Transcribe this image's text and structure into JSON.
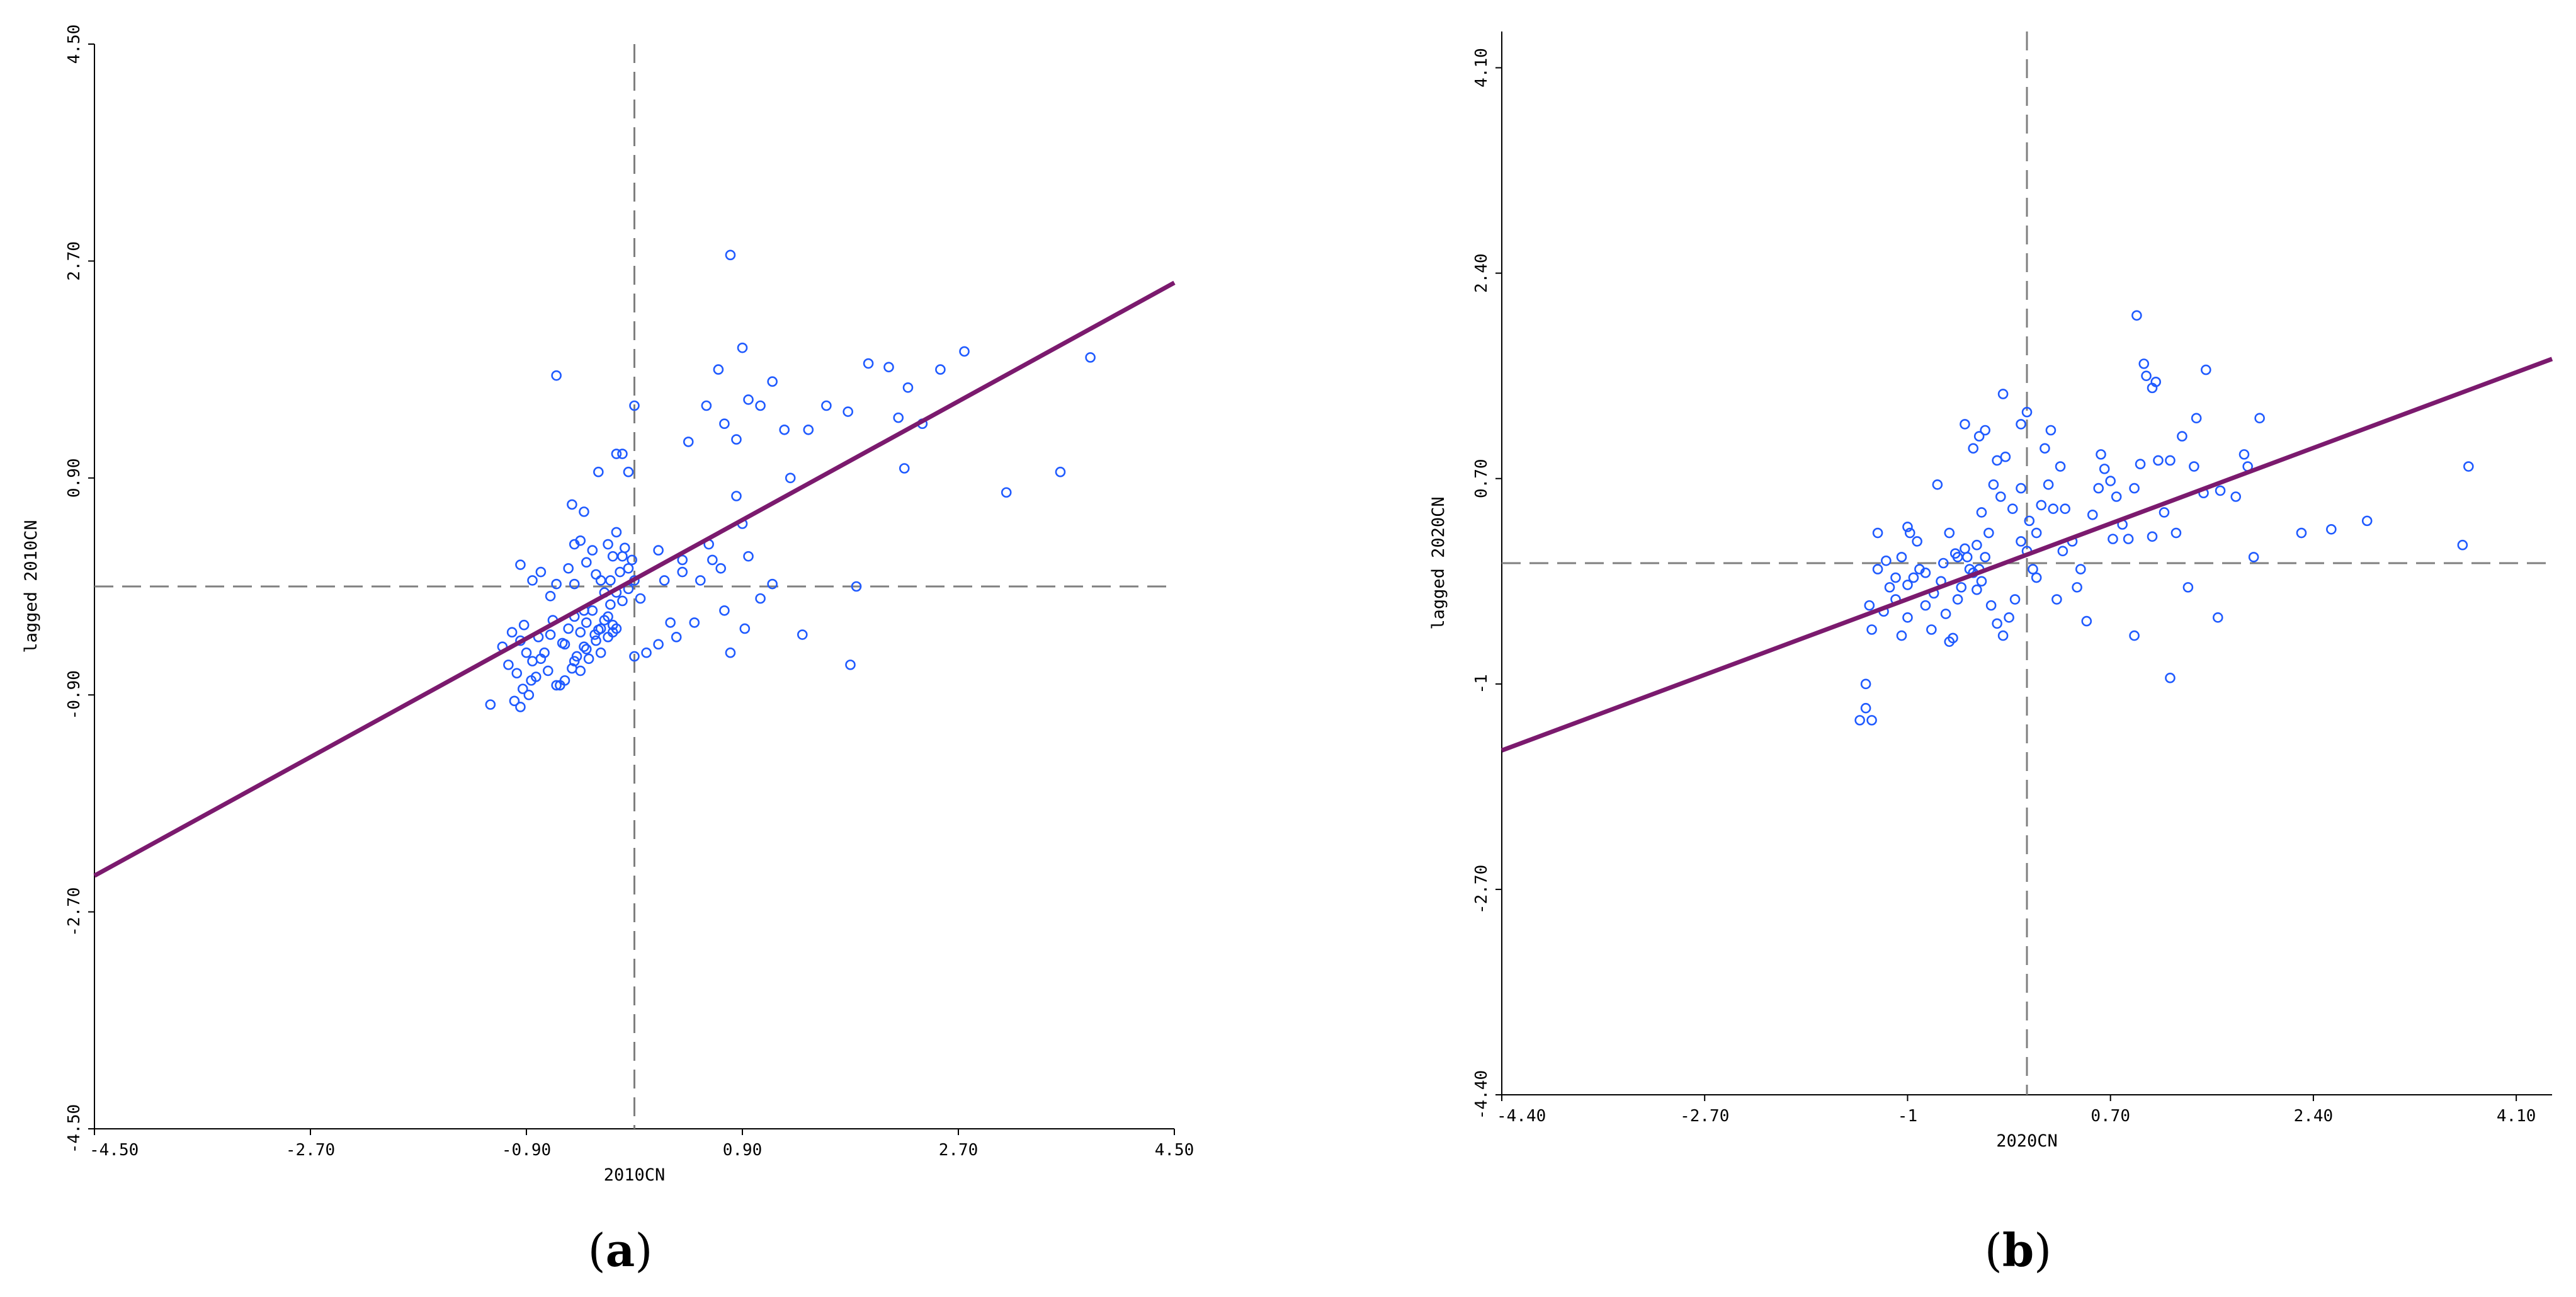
{
  "chart_data": [
    {
      "type": "scatter",
      "panel_caption": {
        "open": "(",
        "letter": "a",
        "close": ")"
      },
      "xlabel": "2010CN",
      "ylabel": "lagged 2010CN",
      "xlim": [
        -4.5,
        4.5
      ],
      "ylim": [
        -4.5,
        4.5
      ],
      "x_ticks": [
        "-4.50",
        "-2.70",
        "-0.90",
        "0.90",
        "2.70",
        "4.50"
      ],
      "x_tick_values": [
        -4.5,
        -2.7,
        -0.9,
        0.9,
        2.7,
        4.5
      ],
      "y_ticks": [
        "-4.50",
        "-2.70",
        "-0.90",
        "0.90",
        "2.70",
        "4.50"
      ],
      "y_tick_values": [
        -4.5,
        -2.7,
        -0.9,
        0.9,
        2.7,
        4.5
      ],
      "mean_lines": {
        "x": 0,
        "y": 0
      },
      "regression_line": {
        "x": [
          -4.5,
          4.5
        ],
        "y": [
          -2.4,
          2.52
        ]
      },
      "marker_color": "#1f5aff",
      "line_color": "#7b1a6e",
      "points": [
        [
          -1.2,
          -0.98
        ],
        [
          -1.05,
          -0.65
        ],
        [
          -1.1,
          -0.5
        ],
        [
          -1.02,
          -0.38
        ],
        [
          -0.92,
          -0.32
        ],
        [
          -0.95,
          -0.45
        ],
        [
          -0.9,
          -0.55
        ],
        [
          -0.85,
          -0.62
        ],
        [
          -0.8,
          -0.42
        ],
        [
          -0.75,
          -0.55
        ],
        [
          -0.7,
          -0.4
        ],
        [
          -0.68,
          -0.28
        ],
        [
          -0.6,
          -0.47
        ],
        [
          -0.55,
          -0.35
        ],
        [
          -0.5,
          -0.25
        ],
        [
          -0.45,
          -0.38
        ],
        [
          -0.4,
          -0.3
        ],
        [
          -0.35,
          -0.2
        ],
        [
          -0.3,
          -0.36
        ],
        [
          -0.25,
          -0.28
        ],
        [
          -0.2,
          -0.15
        ],
        [
          -0.15,
          -0.05
        ],
        [
          -0.1,
          -0.12
        ],
        [
          -0.05,
          -0.02
        ],
        [
          0.0,
          0.05
        ],
        [
          0.05,
          -0.1
        ],
        [
          -0.98,
          -0.72
        ],
        [
          -0.93,
          -0.85
        ],
        [
          -0.88,
          -0.9
        ],
        [
          -0.82,
          -0.75
        ],
        [
          -0.78,
          -0.6
        ],
        [
          -0.72,
          -0.7
        ],
        [
          -0.65,
          -0.82
        ],
        [
          -0.58,
          -0.78
        ],
        [
          -0.52,
          -0.68
        ],
        [
          -0.48,
          -0.58
        ],
        [
          -0.42,
          -0.5
        ],
        [
          -0.38,
          -0.6
        ],
        [
          -0.32,
          -0.45
        ],
        [
          -0.28,
          -0.55
        ],
        [
          -0.22,
          -0.42
        ],
        [
          -0.18,
          -0.32
        ],
        [
          -1.0,
          -0.95
        ],
        [
          -0.95,
          -1.0
        ],
        [
          -0.86,
          -0.78
        ],
        [
          -0.62,
          -0.82
        ],
        [
          -0.58,
          -0.48
        ],
        [
          -0.5,
          -0.62
        ],
        [
          -0.45,
          -0.7
        ],
        [
          -0.4,
          -0.52
        ],
        [
          -0.33,
          -0.4
        ],
        [
          -0.28,
          -0.35
        ],
        [
          -0.22,
          -0.25
        ],
        [
          -0.18,
          -0.38
        ],
        [
          -0.95,
          0.18
        ],
        [
          -0.85,
          0.05
        ],
        [
          -0.78,
          0.12
        ],
        [
          -0.7,
          -0.08
        ],
        [
          -0.65,
          0.02
        ],
        [
          -0.55,
          0.15
        ],
        [
          -0.5,
          0.02
        ],
        [
          -0.45,
          0.38
        ],
        [
          -0.42,
          0.62
        ],
        [
          -0.4,
          0.2
        ],
        [
          -0.35,
          0.3
        ],
        [
          -0.32,
          0.1
        ],
        [
          -0.28,
          0.05
        ],
        [
          -0.25,
          -0.05
        ],
        [
          -0.22,
          0.35
        ],
        [
          -0.2,
          0.05
        ],
        [
          -0.18,
          0.25
        ],
        [
          -0.15,
          0.45
        ],
        [
          -0.12,
          0.12
        ],
        [
          -0.1,
          0.25
        ],
        [
          -0.08,
          0.32
        ],
        [
          -0.05,
          0.15
        ],
        [
          -0.02,
          0.22
        ],
        [
          -0.3,
          0.95
        ],
        [
          -0.15,
          1.1
        ],
        [
          -0.1,
          1.1
        ],
        [
          -0.05,
          0.95
        ],
        [
          0.0,
          1.5
        ],
        [
          -0.65,
          1.75
        ],
        [
          0.2,
          0.3
        ],
        [
          0.25,
          0.05
        ],
        [
          0.4,
          0.22
        ],
        [
          0.4,
          0.12
        ],
        [
          0.3,
          -0.3
        ],
        [
          0.1,
          -0.55
        ],
        [
          0.0,
          -0.58
        ],
        [
          0.2,
          -0.48
        ],
        [
          0.35,
          -0.42
        ],
        [
          0.5,
          -0.3
        ],
        [
          0.55,
          0.05
        ],
        [
          0.62,
          0.35
        ],
        [
          0.65,
          0.22
        ],
        [
          0.72,
          0.15
        ],
        [
          0.75,
          -0.2
        ],
        [
          0.8,
          -0.55
        ],
        [
          0.85,
          0.75
        ],
        [
          0.9,
          0.52
        ],
        [
          0.92,
          -0.35
        ],
        [
          0.95,
          0.25
        ],
        [
          1.05,
          -0.1
        ],
        [
          1.15,
          0.02
        ],
        [
          1.4,
          -0.4
        ],
        [
          1.8,
          -0.65
        ],
        [
          1.85,
          0.0
        ],
        [
          0.45,
          1.2
        ],
        [
          0.6,
          1.5
        ],
        [
          0.7,
          1.8
        ],
        [
          0.75,
          1.35
        ],
        [
          0.85,
          1.22
        ],
        [
          0.9,
          1.98
        ],
        [
          0.95,
          1.55
        ],
        [
          1.05,
          1.5
        ],
        [
          1.15,
          1.7
        ],
        [
          1.25,
          1.3
        ],
        [
          1.3,
          0.9
        ],
        [
          1.45,
          1.3
        ],
        [
          1.6,
          1.5
        ],
        [
          1.78,
          1.45
        ],
        [
          1.95,
          1.85
        ],
        [
          2.12,
          1.82
        ],
        [
          2.2,
          1.4
        ],
        [
          2.28,
          1.65
        ],
        [
          2.4,
          1.35
        ],
        [
          2.25,
          0.98
        ],
        [
          2.55,
          1.8
        ],
        [
          2.75,
          1.95
        ],
        [
          3.1,
          0.78
        ],
        [
          3.55,
          0.95
        ],
        [
          3.8,
          1.9
        ],
        [
          0.8,
          2.75
        ],
        [
          -0.5,
          0.35
        ],
        [
          -0.52,
          0.68
        ],
        [
          -0.42,
          -0.2
        ],
        [
          -0.15,
          -0.35
        ]
      ]
    },
    {
      "type": "scatter",
      "panel_caption": {
        "open": "(",
        "letter": "b",
        "close": ")"
      },
      "xlabel": "2020CN",
      "ylabel": "lagged 2020CN",
      "xlim": [
        -4.4,
        4.4
      ],
      "ylim": [
        -4.4,
        4.4
      ],
      "x_ticks": [
        "-4.40",
        "-2.70",
        "-1",
        "0.70",
        "2.40",
        "4.10"
      ],
      "x_tick_values": [
        -4.4,
        -2.7,
        -1.0,
        0.7,
        2.4,
        4.1
      ],
      "y_ticks": [
        "-4.40",
        "-2.70",
        "-1",
        "0.70",
        "2.40",
        "4.10"
      ],
      "y_tick_values": [
        -4.4,
        -2.7,
        -1.0,
        0.7,
        2.4,
        4.1
      ],
      "mean_lines": {
        "x": 0,
        "y": 0
      },
      "regression_line": {
        "x": [
          -4.4,
          4.4
        ],
        "y": [
          -1.55,
          1.69
        ]
      },
      "marker_color": "#1f5aff",
      "line_color": "#7b1a6e",
      "points": [
        [
          -1.4,
          -1.3
        ],
        [
          -1.3,
          -1.3
        ],
        [
          -1.35,
          -1.0
        ],
        [
          -1.35,
          -1.2
        ],
        [
          -1.3,
          -0.55
        ],
        [
          -1.32,
          -0.35
        ],
        [
          -1.2,
          -0.4
        ],
        [
          -1.15,
          -0.2
        ],
        [
          -1.1,
          -0.3
        ],
        [
          -1.05,
          -0.6
        ],
        [
          -1.0,
          -0.45
        ],
        [
          -0.95,
          -0.12
        ],
        [
          -0.9,
          -0.05
        ],
        [
          -0.85,
          -0.35
        ],
        [
          -0.8,
          -0.55
        ],
        [
          -0.78,
          -0.25
        ],
        [
          -0.72,
          -0.15
        ],
        [
          -0.68,
          -0.42
        ],
        [
          -0.62,
          -0.62
        ],
        [
          -0.58,
          -0.3
        ],
        [
          -0.55,
          -0.2
        ],
        [
          -0.5,
          0.05
        ],
        [
          -0.45,
          -0.08
        ],
        [
          -0.42,
          -0.22
        ],
        [
          -0.38,
          -0.15
        ],
        [
          -0.35,
          0.05
        ],
        [
          -0.3,
          -0.35
        ],
        [
          -0.25,
          -0.5
        ],
        [
          -0.2,
          -0.6
        ],
        [
          -0.15,
          -0.45
        ],
        [
          -0.1,
          -0.3
        ],
        [
          -0.05,
          0.18
        ],
        [
          0.0,
          0.1
        ],
        [
          0.05,
          -0.05
        ],
        [
          -1.25,
          -0.05
        ],
        [
          -1.18,
          0.02
        ],
        [
          -1.1,
          -0.12
        ],
        [
          -1.05,
          0.05
        ],
        [
          -0.98,
          0.25
        ],
        [
          -0.92,
          0.18
        ],
        [
          -0.85,
          -0.08
        ],
        [
          -0.7,
          0.0
        ],
        [
          -0.65,
          0.25
        ],
        [
          -0.6,
          0.08
        ],
        [
          -0.52,
          0.12
        ],
        [
          -0.48,
          -0.05
        ],
        [
          -0.42,
          0.15
        ],
        [
          -0.38,
          0.42
        ],
        [
          -0.32,
          0.25
        ],
        [
          -0.28,
          0.65
        ],
        [
          -0.22,
          0.55
        ],
        [
          -0.18,
          0.88
        ],
        [
          -0.12,
          0.45
        ],
        [
          -0.05,
          0.62
        ],
        [
          0.02,
          0.35
        ],
        [
          0.08,
          0.25
        ],
        [
          0.12,
          0.48
        ],
        [
          0.18,
          0.65
        ],
        [
          0.22,
          0.45
        ],
        [
          0.3,
          0.1
        ],
        [
          -1.25,
          0.25
        ],
        [
          -1.0,
          0.3
        ],
        [
          -0.75,
          0.65
        ],
        [
          -0.52,
          1.15
        ],
        [
          -0.45,
          0.95
        ],
        [
          -0.4,
          1.05
        ],
        [
          -0.35,
          1.1
        ],
        [
          -0.2,
          1.4
        ],
        [
          -0.05,
          1.15
        ],
        [
          0.0,
          1.25
        ],
        [
          0.2,
          1.1
        ],
        [
          0.28,
          0.8
        ],
        [
          0.32,
          0.45
        ],
        [
          0.38,
          0.18
        ],
        [
          0.42,
          -0.2
        ],
        [
          0.45,
          -0.05
        ],
        [
          0.55,
          0.4
        ],
        [
          0.6,
          0.62
        ],
        [
          0.65,
          0.78
        ],
        [
          0.7,
          0.68
        ],
        [
          0.75,
          0.55
        ],
        [
          0.8,
          0.32
        ],
        [
          0.85,
          0.2
        ],
        [
          0.9,
          0.62
        ],
        [
          0.95,
          0.82
        ],
        [
          0.98,
          1.65
        ],
        [
          1.0,
          1.55
        ],
        [
          1.05,
          0.22
        ],
        [
          1.1,
          0.85
        ],
        [
          1.15,
          0.42
        ],
        [
          1.2,
          0.85
        ],
        [
          1.3,
          1.05
        ],
        [
          1.4,
          0.8
        ],
        [
          1.48,
          0.58
        ],
        [
          1.62,
          0.6
        ],
        [
          1.75,
          0.55
        ],
        [
          1.85,
          0.8
        ],
        [
          1.9,
          0.05
        ],
        [
          1.95,
          1.2
        ],
        [
          2.3,
          0.25
        ],
        [
          2.55,
          0.28
        ],
        [
          2.85,
          0.35
        ],
        [
          3.65,
          0.15
        ],
        [
          3.7,
          0.8
        ],
        [
          0.92,
          2.05
        ],
        [
          1.05,
          1.45
        ],
        [
          1.08,
          1.5
        ],
        [
          1.42,
          1.2
        ],
        [
          1.5,
          1.6
        ],
        [
          1.82,
          0.9
        ],
        [
          -0.65,
          -0.65
        ],
        [
          -0.4,
          -0.05
        ],
        [
          0.25,
          -0.3
        ],
        [
          0.5,
          -0.48
        ],
        [
          0.62,
          0.9
        ],
        [
          0.9,
          -0.6
        ],
        [
          1.2,
          -0.95
        ],
        [
          1.35,
          -0.2
        ],
        [
          1.6,
          -0.45
        ],
        [
          -0.25,
          0.85
        ],
        [
          0.15,
          0.95
        ],
        [
          -1.0,
          -0.18
        ],
        [
          -0.58,
          0.05
        ],
        [
          0.08,
          -0.12
        ],
        [
          0.72,
          0.2
        ],
        [
          1.25,
          0.25
        ]
      ]
    }
  ]
}
